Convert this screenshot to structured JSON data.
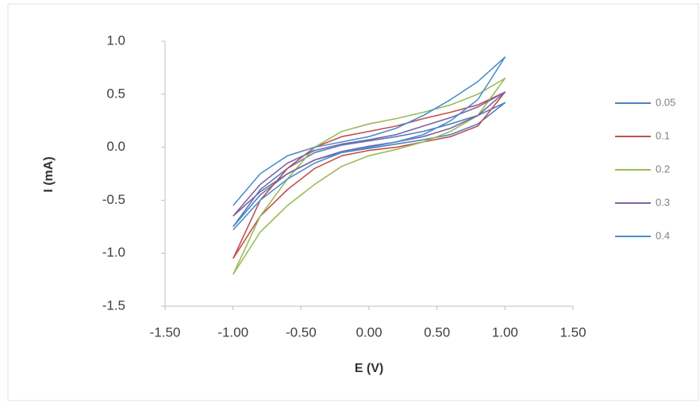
{
  "chart_data": {
    "type": "line",
    "x_label": "E (V)",
    "y_label": "I (mA)",
    "xlim": [
      -1.5,
      1.5
    ],
    "ylim": [
      -1.5,
      1.0
    ],
    "xticks": [
      {
        "value": -1.5,
        "label": "-1.50"
      },
      {
        "value": -1,
        "label": "-1.00"
      },
      {
        "value": -0.5,
        "label": "-0.50"
      },
      {
        "value": 0,
        "label": "0.00"
      },
      {
        "value": 0.5,
        "label": "0.50"
      },
      {
        "value": 1,
        "label": "1.00"
      },
      {
        "value": 1.5,
        "label": "1.50"
      }
    ],
    "yticks": [
      {
        "value": 1,
        "label": "1.0"
      },
      0.5,
      {
        "value": 0,
        "label": "0.0"
      },
      -0.5,
      {
        "value": -1,
        "label": "-1.0"
      },
      -1.5
    ],
    "grid": false,
    "legend": "right",
    "series": [
      {
        "name": "0.05",
        "color": "#4f81bd",
        "x": [
          -1,
          -0.8,
          -0.6,
          -0.4,
          -0.2,
          0,
          0.2,
          0.4,
          0.6,
          0.8,
          1,
          0.8,
          0.6,
          0.4,
          0.2,
          0,
          -0.2,
          -0.4,
          -0.6,
          -0.8,
          -1
        ],
        "values": [
          -0.75,
          -0.4,
          -0.2,
          -0.05,
          0.02,
          0.06,
          0.1,
          0.15,
          0.22,
          0.3,
          0.42,
          0.22,
          0.12,
          0.07,
          0.03,
          -0.01,
          -0.05,
          -0.12,
          -0.25,
          -0.45,
          -0.75
        ]
      },
      {
        "name": "0.1",
        "color": "#c0504d",
        "x": [
          -1,
          -0.8,
          -0.6,
          -0.4,
          -0.2,
          0,
          0.2,
          0.4,
          0.6,
          0.8,
          1,
          0.8,
          0.6,
          0.4,
          0.2,
          0,
          -0.2,
          -0.4,
          -0.6,
          -0.8,
          -1
        ],
        "values": [
          -1.05,
          -0.5,
          -0.2,
          0,
          0.1,
          0.15,
          0.2,
          0.27,
          0.33,
          0.4,
          0.52,
          0.2,
          0.1,
          0.05,
          0,
          -0.03,
          -0.08,
          -0.2,
          -0.4,
          -0.65,
          -1.05
        ]
      },
      {
        "name": "0.2",
        "color": "#9bbb59",
        "x": [
          -1,
          -0.8,
          -0.6,
          -0.4,
          -0.2,
          0,
          0.2,
          0.4,
          0.6,
          0.8,
          1,
          0.8,
          0.6,
          0.4,
          0.2,
          0,
          -0.2,
          -0.4,
          -0.6,
          -0.8,
          -1
        ],
        "values": [
          -1.2,
          -0.65,
          -0.3,
          0,
          0.15,
          0.22,
          0.27,
          0.33,
          0.4,
          0.5,
          0.65,
          0.3,
          0.15,
          0.05,
          -0.02,
          -0.08,
          -0.18,
          -0.35,
          -0.55,
          -0.8,
          -1.2
        ]
      },
      {
        "name": "0.3",
        "color": "#8064a2",
        "x": [
          -1,
          -0.8,
          -0.6,
          -0.4,
          -0.2,
          0,
          0.2,
          0.4,
          0.6,
          0.8,
          1,
          0.8,
          0.6,
          0.4,
          0.2,
          0,
          -0.2,
          -0.4,
          -0.6,
          -0.8,
          -1
        ],
        "values": [
          -0.65,
          -0.35,
          -0.15,
          -0.03,
          0.03,
          0.07,
          0.12,
          0.2,
          0.28,
          0.38,
          0.52,
          0.3,
          0.18,
          0.1,
          0.05,
          0.01,
          -0.04,
          -0.12,
          -0.25,
          -0.42,
          -0.65
        ]
      },
      {
        "name": "0.4",
        "color": "#4a8fd0",
        "x": [
          -1,
          -0.8,
          -0.6,
          -0.4,
          -0.2,
          0,
          0.2,
          0.4,
          0.6,
          0.8,
          1,
          0.8,
          0.6,
          0.4,
          0.2,
          0,
          -0.2,
          -0.4,
          -0.6,
          -0.8,
          -1
        ],
        "values": [
          -0.55,
          -0.25,
          -0.08,
          0,
          0.05,
          0.1,
          0.18,
          0.3,
          0.45,
          0.62,
          0.85,
          0.45,
          0.25,
          0.12,
          0.05,
          0,
          -0.05,
          -0.15,
          -0.3,
          -0.5,
          -0.78
        ]
      }
    ]
  }
}
